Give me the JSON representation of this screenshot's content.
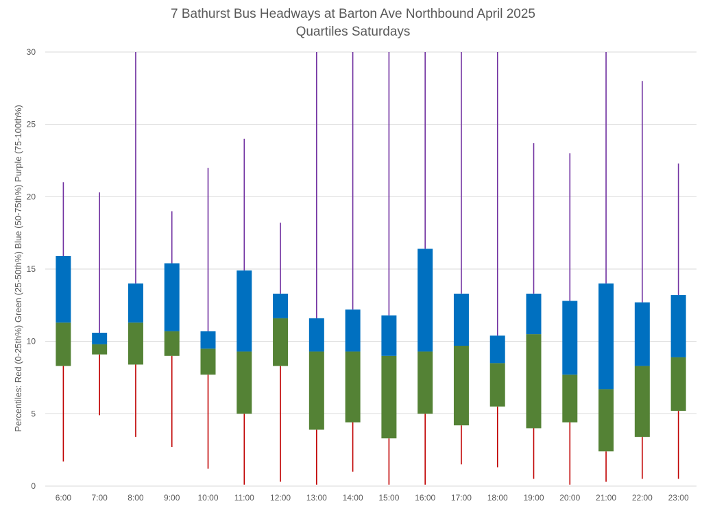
{
  "chart_data": {
    "type": "box",
    "title": "7 Bathurst Bus Headways at Barton Ave Northbound April 2025",
    "subtitle": "Quartiles Saturdays",
    "ylabel": "Percentiles:  Red (0-25th%)  Green (25-50th%)  Blue (50-75th%)  Purple (75-100th%)",
    "ylim": [
      0,
      30
    ],
    "yticks": [
      0,
      5,
      10,
      15,
      20,
      25,
      30
    ],
    "grid": true,
    "categories": [
      "6:00",
      "7:00",
      "8:00",
      "9:00",
      "10:00",
      "11:00",
      "12:00",
      "13:00",
      "14:00",
      "15:00",
      "16:00",
      "17:00",
      "18:00",
      "19:00",
      "20:00",
      "21:00",
      "22:00",
      "23:00"
    ],
    "min": [
      1.7,
      4.9,
      3.4,
      2.7,
      1.2,
      0.1,
      0.3,
      0.1,
      1.0,
      0.1,
      0.1,
      1.5,
      1.3,
      0.5,
      0.1,
      0.3,
      0.5,
      0.5
    ],
    "q1": [
      8.3,
      9.1,
      8.4,
      9.0,
      7.7,
      5.0,
      8.3,
      3.9,
      4.4,
      3.3,
      5.0,
      4.2,
      5.5,
      4.0,
      4.4,
      2.4,
      3.4,
      5.2
    ],
    "median": [
      11.3,
      9.8,
      11.3,
      10.7,
      9.5,
      9.3,
      11.6,
      9.3,
      9.3,
      9.0,
      9.3,
      9.7,
      8.5,
      10.5,
      7.7,
      6.7,
      8.3,
      8.9
    ],
    "q3": [
      15.9,
      10.6,
      14.0,
      15.4,
      10.7,
      14.9,
      13.3,
      11.6,
      12.2,
      11.8,
      16.4,
      13.3,
      10.4,
      13.3,
      12.8,
      14.0,
      12.7,
      13.2
    ],
    "max": [
      21.0,
      20.3,
      30.0,
      19.0,
      22.0,
      24.0,
      18.2,
      30.0,
      30.0,
      30.0,
      30.0,
      30.0,
      30.0,
      23.7,
      23.0,
      30.0,
      28.0,
      22.3
    ],
    "colors": {
      "whisker_low": "#c00000",
      "q1_to_median": "#548235",
      "median_to_q3": "#0070c0",
      "whisker_high": "#7030a0"
    }
  }
}
